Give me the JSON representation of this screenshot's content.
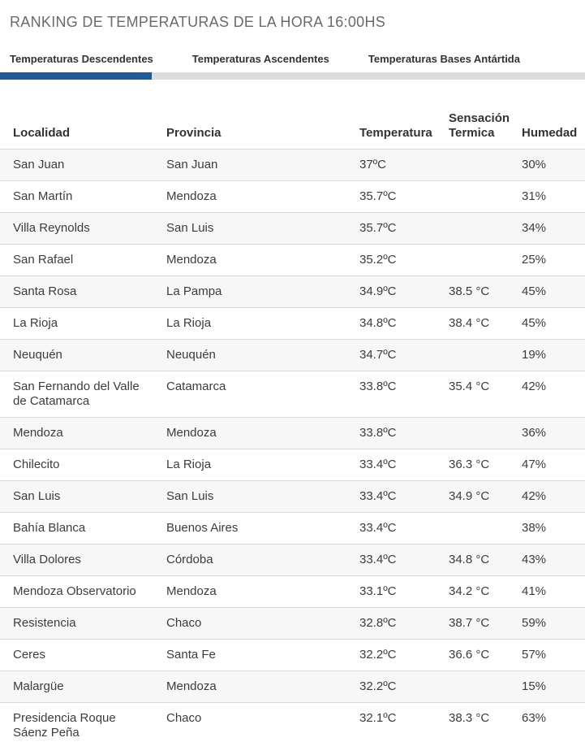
{
  "header": {
    "title": "RANKING DE TEMPERATURAS DE LA HORA 16:00HS"
  },
  "tabs": [
    {
      "label": "Temperaturas Descendentes",
      "active": true
    },
    {
      "label": "Temperaturas Ascendentes",
      "active": false
    },
    {
      "label": "Temperaturas Bases Antártida",
      "active": false
    }
  ],
  "table": {
    "columns": [
      "Localidad",
      "Provincia",
      "Temperatura",
      "Sensación\nTermica",
      "Humedad"
    ],
    "rows": [
      {
        "localidad": "San Juan",
        "provincia": "San Juan",
        "temperatura": "37ºC",
        "sensacion": "",
        "humedad": "30%"
      },
      {
        "localidad": "San Martín",
        "provincia": "Mendoza",
        "temperatura": "35.7ºC",
        "sensacion": "",
        "humedad": "31%"
      },
      {
        "localidad": "Villa Reynolds",
        "provincia": "San Luis",
        "temperatura": "35.7ºC",
        "sensacion": "",
        "humedad": "34%"
      },
      {
        "localidad": "San Rafael",
        "provincia": "Mendoza",
        "temperatura": "35.2ºC",
        "sensacion": "",
        "humedad": "25%"
      },
      {
        "localidad": "Santa Rosa",
        "provincia": "La Pampa",
        "temperatura": "34.9ºC",
        "sensacion": "38.5 °C",
        "humedad": "45%"
      },
      {
        "localidad": "La Rioja",
        "provincia": "La Rioja",
        "temperatura": "34.8ºC",
        "sensacion": "38.4 °C",
        "humedad": "45%"
      },
      {
        "localidad": "Neuquén",
        "provincia": "Neuquén",
        "temperatura": "34.7ºC",
        "sensacion": "",
        "humedad": "19%"
      },
      {
        "localidad": "San Fernando del Valle\nde Catamarca",
        "provincia": "Catamarca",
        "temperatura": "33.8ºC",
        "sensacion": "35.4 °C",
        "humedad": "42%"
      },
      {
        "localidad": "Mendoza",
        "provincia": "Mendoza",
        "temperatura": "33.8ºC",
        "sensacion": "",
        "humedad": "36%"
      },
      {
        "localidad": "Chilecito",
        "provincia": "La Rioja",
        "temperatura": "33.4ºC",
        "sensacion": "36.3 °C",
        "humedad": "47%"
      },
      {
        "localidad": "San Luis",
        "provincia": "San Luis",
        "temperatura": "33.4ºC",
        "sensacion": "34.9 °C",
        "humedad": "42%"
      },
      {
        "localidad": "Bahía Blanca",
        "provincia": "Buenos Aires",
        "temperatura": "33.4ºC",
        "sensacion": "",
        "humedad": "38%"
      },
      {
        "localidad": "Villa Dolores",
        "provincia": "Córdoba",
        "temperatura": "33.4ºC",
        "sensacion": "34.8 °C",
        "humedad": "43%"
      },
      {
        "localidad": "Mendoza Observatorio",
        "provincia": "Mendoza",
        "temperatura": "33.1ºC",
        "sensacion": "34.2 °C",
        "humedad": "41%"
      },
      {
        "localidad": "Resistencia",
        "provincia": "Chaco",
        "temperatura": "32.8ºC",
        "sensacion": "38.7 °C",
        "humedad": "59%"
      },
      {
        "localidad": "Ceres",
        "provincia": "Santa Fe",
        "temperatura": "32.2ºC",
        "sensacion": "36.6 °C",
        "humedad": "57%"
      },
      {
        "localidad": "Malargüe",
        "provincia": "Mendoza",
        "temperatura": "32.2ºC",
        "sensacion": "",
        "humedad": "15%"
      },
      {
        "localidad": "Presidencia Roque\nSáenz Peña",
        "provincia": "Chaco",
        "temperatura": "32.1ºC",
        "sensacion": "38.3 °C",
        "humedad": "63%"
      }
    ]
  },
  "colors": {
    "accent": "#1e5b99",
    "tab_track": "#dcdcdc",
    "row_stripe": "#f7f7f7",
    "row_border": "#d9d9d9",
    "title": "#6a6a6a",
    "text": "#3c3c3c",
    "header_text": "#333333"
  }
}
